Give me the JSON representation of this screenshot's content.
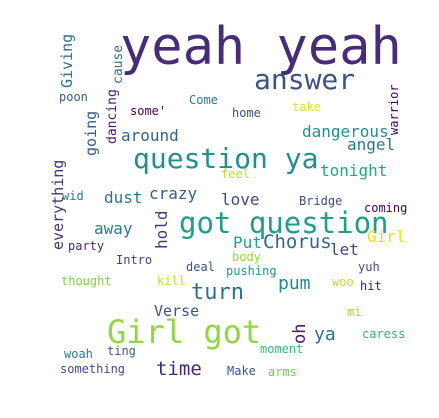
{
  "words": [
    {
      "text": "yeah yeah",
      "color": "#472c7a"
    },
    {
      "text": "answer",
      "color": "#3b528b"
    },
    {
      "text": "question ya",
      "color": "#21908d"
    },
    {
      "text": "got question",
      "color": "#1f9e89"
    },
    {
      "text": "Girl got",
      "color": "#8fd744"
    },
    {
      "text": "turn",
      "color": "#2d708e"
    },
    {
      "text": "time",
      "color": "#482576"
    },
    {
      "text": "dangerous",
      "color": "#21908d"
    },
    {
      "text": "angel",
      "color": "#2a788e"
    },
    {
      "text": "tonight",
      "color": "#22a884"
    },
    {
      "text": "around",
      "color": "#33638d"
    },
    {
      "text": "crazy",
      "color": "#355f8d"
    },
    {
      "text": "love",
      "color": "#3e4a89"
    },
    {
      "text": "dust",
      "color": "#2c728e"
    },
    {
      "text": "Chorus",
      "color": "#31688e"
    },
    {
      "text": "Put",
      "color": "#20a386"
    },
    {
      "text": "let",
      "color": "#404688"
    },
    {
      "text": "Girl",
      "color": "#e5e419"
    },
    {
      "text": "pum",
      "color": "#23898e"
    },
    {
      "text": "ya",
      "color": "#2e6e8e"
    },
    {
      "text": "oh",
      "color": "#48186a"
    },
    {
      "text": "Verse",
      "color": "#3b528b"
    },
    {
      "text": "away",
      "color": "#287d8e"
    },
    {
      "text": "hold",
      "color": "#453781"
    },
    {
      "text": "everything",
      "color": "#46337e"
    },
    {
      "text": "going",
      "color": "#375b8d"
    },
    {
      "text": "Giving",
      "color": "#2c728e"
    },
    {
      "text": "cause",
      "color": "#2e6e8e"
    },
    {
      "text": "poon",
      "color": "#38598c"
    },
    {
      "text": "dancing",
      "color": "#481769"
    },
    {
      "text": "some'",
      "color": "#440154"
    },
    {
      "text": "Come",
      "color": "#2a788e"
    },
    {
      "text": "home",
      "color": "#3e4c8a"
    },
    {
      "text": "take",
      "color": "#dde318"
    },
    {
      "text": "warrior",
      "color": "#46085c"
    },
    {
      "text": "feel",
      "color": "#b8de29"
    },
    {
      "text": "wid",
      "color": "#2a788e"
    },
    {
      "text": "Bridge",
      "color": "#3e4c8a"
    },
    {
      "text": "coming",
      "color": "#440154"
    },
    {
      "text": "party",
      "color": "#482878"
    },
    {
      "text": "Intro",
      "color": "#433e85"
    },
    {
      "text": "body",
      "color": "#95d840"
    },
    {
      "text": "deal",
      "color": "#3b528b"
    },
    {
      "text": "pushing",
      "color": "#1f968b"
    },
    {
      "text": "yuh",
      "color": "#3e4a89"
    },
    {
      "text": "thought",
      "color": "#7ad151"
    },
    {
      "text": "kill",
      "color": "#c2df23"
    },
    {
      "text": "woo",
      "color": "#c0df25"
    },
    {
      "text": "hit",
      "color": "#481a6c"
    },
    {
      "text": "mi",
      "color": "#a8db34"
    },
    {
      "text": "caress",
      "color": "#2db27d"
    },
    {
      "text": "ting",
      "color": "#355e8d"
    },
    {
      "text": "moment",
      "color": "#3aba76"
    },
    {
      "text": "woah",
      "color": "#2a788e"
    },
    {
      "text": "something",
      "color": "#3e4a89"
    },
    {
      "text": "Make",
      "color": "#3b528b"
    },
    {
      "text": "arms",
      "color": "#6ccd5a"
    }
  ]
}
